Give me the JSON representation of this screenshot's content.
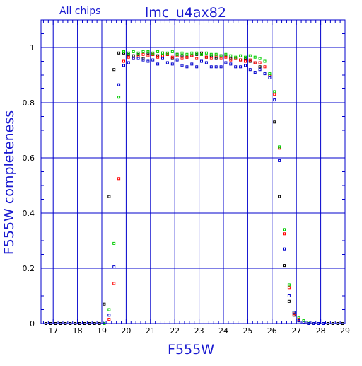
{
  "chart_data": {
    "type": "scatter",
    "title": "lmc_u4ax82",
    "subtitle": "All chips",
    "xlabel": "F555W",
    "ylabel": "F555W completeness",
    "xlim": [
      16.5,
      29
    ],
    "ylim": [
      0,
      1.1
    ],
    "x_ticks": [
      17,
      18,
      19,
      20,
      21,
      22,
      23,
      24,
      25,
      26,
      27,
      28,
      29
    ],
    "y_ticks": [
      0,
      0.2,
      0.4,
      0.6,
      0.8,
      1
    ],
    "y_tick_labels": [
      "0",
      "0.2",
      "0.4",
      "0.6",
      "0.8",
      "1"
    ],
    "grid": true,
    "colors": {
      "frame": "#0000cc",
      "title": "#1a1ad0"
    },
    "series": [
      {
        "color": "#000000",
        "x": [
          16.7,
          16.9,
          17.1,
          17.3,
          17.5,
          17.7,
          17.9,
          18.1,
          18.3,
          18.5,
          18.7,
          18.9,
          19.1,
          19.3,
          19.5,
          19.7,
          19.9,
          20.1,
          20.3,
          20.5,
          20.7,
          20.9,
          21.1,
          21.3,
          21.5,
          21.7,
          21.9,
          22.1,
          22.3,
          22.5,
          22.7,
          22.9,
          23.1,
          23.3,
          23.5,
          23.7,
          23.9,
          24.1,
          24.3,
          24.5,
          24.7,
          24.9,
          25.1,
          25.3,
          25.5,
          25.7,
          25.9,
          26.1,
          26.3,
          26.5,
          26.7,
          26.9,
          27.1,
          27.3,
          27.5,
          27.7,
          27.9,
          28.1,
          28.3,
          28.5,
          28.7,
          28.9
        ],
        "y": [
          0,
          0,
          0,
          0,
          0,
          0,
          0,
          0,
          0,
          0,
          0,
          0,
          0.07,
          0.46,
          0.92,
          0.98,
          0.98,
          0.975,
          0.97,
          0.975,
          0.96,
          0.98,
          0.975,
          0.97,
          0.98,
          0.975,
          0.96,
          0.975,
          0.97,
          0.965,
          0.97,
          0.975,
          0.98,
          0.965,
          0.97,
          0.96,
          0.97,
          0.97,
          0.96,
          0.96,
          0.955,
          0.96,
          0.95,
          0.945,
          0.93,
          0.95,
          0.9,
          0.73,
          0.46,
          0.21,
          0.08,
          0.03,
          0.01,
          0.005,
          0,
          0,
          0,
          0,
          0,
          0,
          0,
          0
        ]
      },
      {
        "color": "#ff0000",
        "x": [
          19.1,
          19.3,
          19.5,
          19.7,
          19.9,
          20.1,
          20.3,
          20.5,
          20.7,
          20.9,
          21.1,
          21.3,
          21.5,
          21.7,
          21.9,
          22.1,
          22.3,
          22.5,
          22.7,
          22.9,
          23.1,
          23.3,
          23.5,
          23.7,
          23.9,
          24.1,
          24.3,
          24.5,
          24.7,
          24.9,
          25.1,
          25.3,
          25.5,
          25.7,
          25.9,
          26.1,
          26.3,
          26.5,
          26.7,
          26.9,
          27.1,
          27.3,
          27.5,
          27.7,
          27.9,
          28.1
        ],
        "y": [
          0,
          0.015,
          0.145,
          0.525,
          0.95,
          0.965,
          0.96,
          0.97,
          0.975,
          0.97,
          0.975,
          0.965,
          0.97,
          0.975,
          0.965,
          0.97,
          0.96,
          0.965,
          0.97,
          0.96,
          0.975,
          0.965,
          0.96,
          0.97,
          0.96,
          0.965,
          0.955,
          0.96,
          0.955,
          0.95,
          0.955,
          0.945,
          0.945,
          0.93,
          0.9,
          0.83,
          0.635,
          0.325,
          0.13,
          0.035,
          0.015,
          0.005,
          0,
          0,
          0,
          0
        ]
      },
      {
        "color": "#00cc00",
        "x": [
          19.1,
          19.3,
          19.5,
          19.7,
          19.9,
          20.1,
          20.3,
          20.5,
          20.7,
          20.9,
          21.1,
          21.3,
          21.5,
          21.7,
          21.9,
          22.1,
          22.3,
          22.5,
          22.7,
          22.9,
          23.1,
          23.3,
          23.5,
          23.7,
          23.9,
          24.1,
          24.3,
          24.5,
          24.7,
          24.9,
          25.1,
          25.3,
          25.5,
          25.7,
          25.9,
          26.1,
          26.3,
          26.5,
          26.7,
          26.9,
          27.1,
          27.3,
          27.5,
          27.7,
          27.9,
          28.1
        ],
        "y": [
          0,
          0.05,
          0.29,
          0.82,
          0.985,
          0.98,
          0.985,
          0.98,
          0.985,
          0.985,
          0.98,
          0.985,
          0.98,
          0.98,
          0.985,
          0.975,
          0.98,
          0.975,
          0.98,
          0.98,
          0.975,
          0.98,
          0.975,
          0.975,
          0.97,
          0.975,
          0.97,
          0.965,
          0.97,
          0.965,
          0.97,
          0.965,
          0.96,
          0.95,
          0.905,
          0.84,
          0.64,
          0.34,
          0.14,
          0.04,
          0.02,
          0.01,
          0.005,
          0,
          0,
          0
        ]
      },
      {
        "color": "#0000cc",
        "x": [
          19.1,
          19.3,
          19.5,
          19.7,
          19.9,
          20.1,
          20.3,
          20.5,
          20.7,
          20.9,
          21.1,
          21.3,
          21.5,
          21.7,
          21.9,
          22.1,
          22.3,
          22.5,
          22.7,
          22.9,
          23.1,
          23.3,
          23.5,
          23.7,
          23.9,
          24.1,
          24.3,
          24.5,
          24.7,
          24.9,
          25.1,
          25.3,
          25.5,
          25.7,
          25.9,
          26.1,
          26.3,
          26.5,
          26.7,
          26.9,
          27.1,
          27.3,
          27.5,
          27.7,
          27.9,
          28.1
        ],
        "y": [
          0.005,
          0.03,
          0.205,
          0.865,
          0.935,
          0.945,
          0.96,
          0.96,
          0.955,
          0.95,
          0.955,
          0.94,
          0.96,
          0.945,
          0.94,
          0.955,
          0.935,
          0.93,
          0.94,
          0.93,
          0.95,
          0.945,
          0.93,
          0.93,
          0.93,
          0.945,
          0.94,
          0.93,
          0.93,
          0.935,
          0.92,
          0.91,
          0.92,
          0.905,
          0.89,
          0.81,
          0.59,
          0.27,
          0.1,
          0.04,
          0.01,
          0.005,
          0,
          0,
          0,
          0
        ]
      }
    ]
  }
}
